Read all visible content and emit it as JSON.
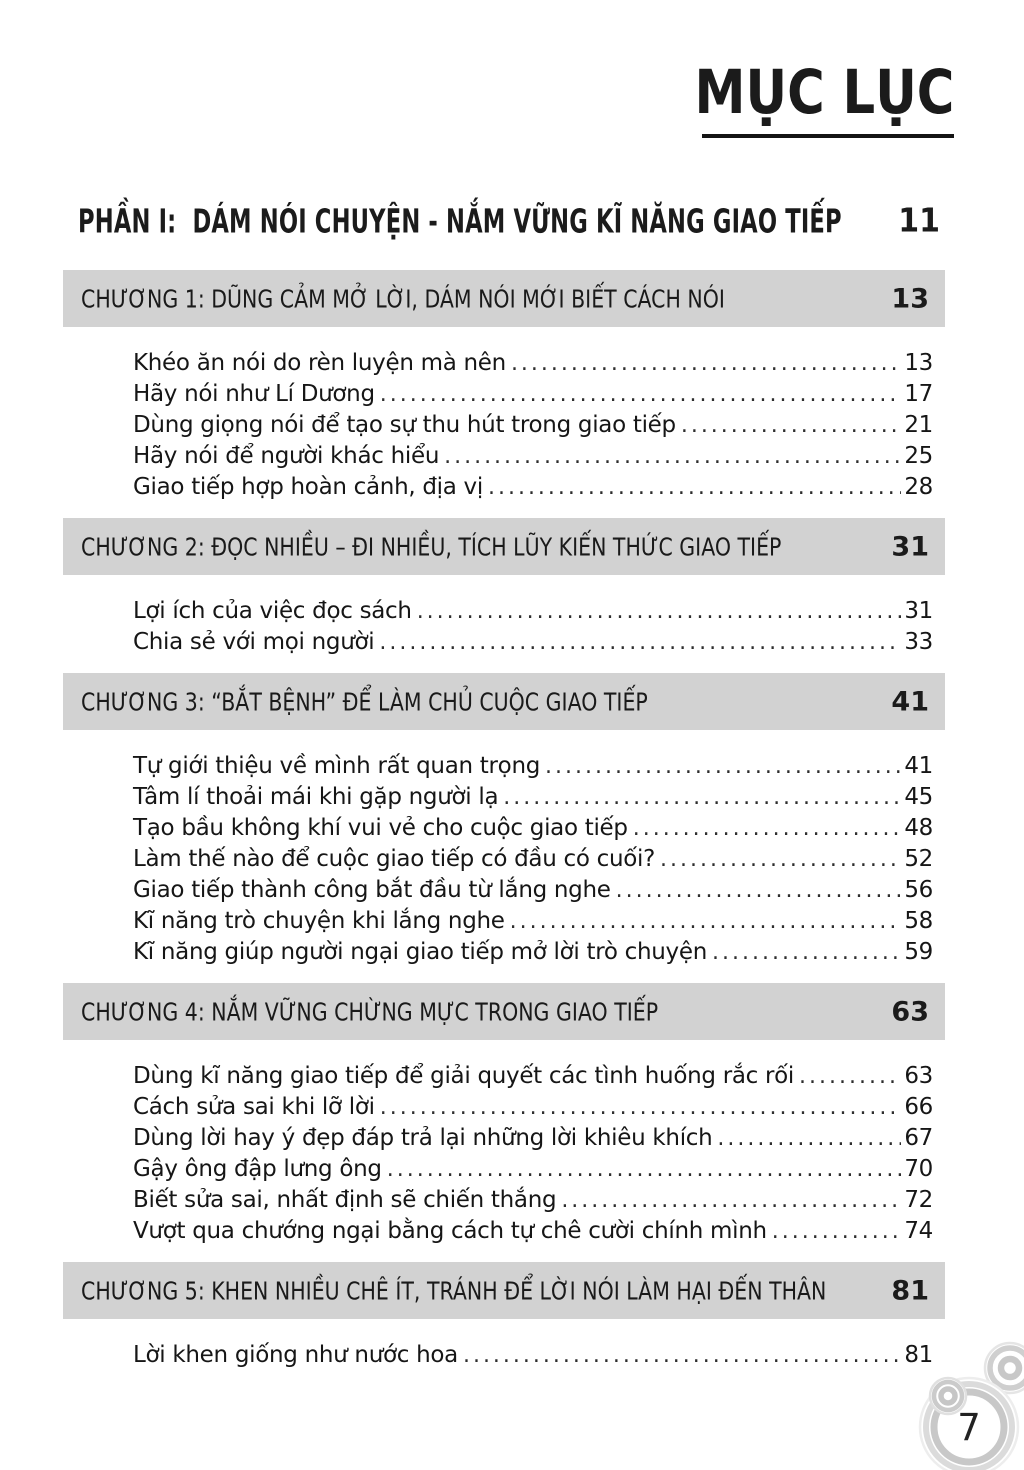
{
  "page": {
    "title": "MỤC LỤC",
    "folio": "7"
  },
  "part": {
    "label": "PHẦN I:",
    "title": "DÁM NÓI CHUYỆN - NẮM VỮNG KĨ NĂNG GIAO TIẾP",
    "page": "11"
  },
  "chapters": [
    {
      "heading": "CHƯƠNG 1: DŨNG CẢM MỞ LỜI, DÁM NÓI MỚI BIẾT CÁCH NÓI",
      "page": "13",
      "items": [
        {
          "title": "Khéo ăn nói do rèn luyện mà nên",
          "page": "13"
        },
        {
          "title": "Hãy nói như Lí Dương",
          "page": "17"
        },
        {
          "title": "Dùng giọng nói để tạo sự thu hút trong giao tiếp",
          "page": "21"
        },
        {
          "title": "Hãy nói để người khác hiểu",
          "page": "25"
        },
        {
          "title": "Giao tiếp hợp hoàn cảnh, địa vị",
          "page": "28"
        }
      ]
    },
    {
      "heading": "CHƯƠNG 2: ĐỌC NHIỀU – ĐI NHIỀU, TÍCH LŨY KIẾN THỨC GIAO TIẾP",
      "page": "31",
      "items": [
        {
          "title": "Lợi ích của việc đọc sách",
          "page": "31"
        },
        {
          "title": "Chia sẻ với mọi người",
          "page": "33"
        }
      ]
    },
    {
      "heading": "CHƯƠNG 3: “BẮT BỆNH” ĐỂ LÀM CHỦ CUỘC GIAO TIẾP",
      "page": "41",
      "items": [
        {
          "title": "Tự giới thiệu về mình rất quan trọng",
          "page": "41"
        },
        {
          "title": "Tâm lí thoải mái khi gặp người lạ",
          "page": "45"
        },
        {
          "title": "Tạo bầu không khí vui vẻ cho cuộc giao tiếp",
          "page": "48"
        },
        {
          "title": "Làm thế nào để cuộc giao tiếp có đầu có cuối?",
          "page": "52"
        },
        {
          "title": "Giao tiếp thành công bắt đầu từ lắng nghe",
          "page": "56"
        },
        {
          "title": "Kĩ năng trò chuyện khi lắng nghe",
          "page": "58"
        },
        {
          "title": "Kĩ năng giúp người ngại giao tiếp mở lời trò chuyện",
          "page": "59"
        }
      ]
    },
    {
      "heading": "CHƯƠNG 4: NẮM VỮNG CHỪNG MỰC TRONG GIAO TIẾP",
      "page": "63",
      "items": [
        {
          "title": "Dùng kĩ năng giao tiếp để giải quyết các tình huống rắc rối",
          "page": "63"
        },
        {
          "title": "Cách sửa sai khi lỡ lời",
          "page": "66"
        },
        {
          "title": "Dùng lời hay ý đẹp đáp trả lại những lời khiêu khích",
          "page": "67"
        },
        {
          "title": "Gậy ông đập lưng ông",
          "page": "70"
        },
        {
          "title": "Biết sửa sai, nhất định sẽ chiến thắng",
          "page": "72"
        },
        {
          "title": "Vượt qua chướng ngại bằng cách tự chê cười chính mình",
          "page": "74"
        }
      ]
    },
    {
      "heading": "CHƯƠNG 5: KHEN NHIỀU CHÊ ÍT, TRÁNH ĐỂ LỜI NÓI LÀM HẠI ĐẾN THÂN",
      "page": "81",
      "items": [
        {
          "title": "Lời khen giống như nước hoa",
          "page": "81"
        }
      ]
    }
  ],
  "colors": {
    "chapter_bar_bg": "#d2d2d2",
    "text": "#1b1b1b",
    "decoration_gray": "#c9c9c9"
  }
}
